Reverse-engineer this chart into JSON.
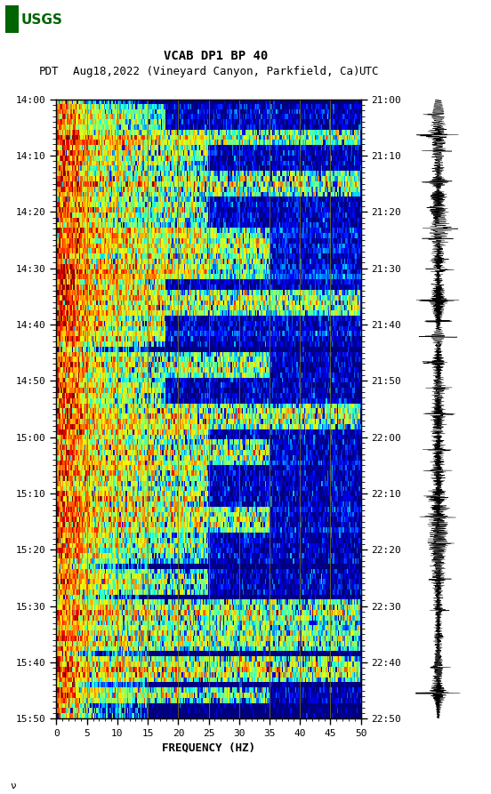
{
  "title_line1": "VCAB DP1 BP 40",
  "title_line2_left": "PDT",
  "title_line2_mid": "Aug18,2022 (Vineyard Canyon, Parkfield, Ca)",
  "title_line2_right": "UTC",
  "xlabel": "FREQUENCY (HZ)",
  "freq_min": 0,
  "freq_max": 50,
  "freq_ticks": [
    0,
    5,
    10,
    15,
    20,
    25,
    30,
    35,
    40,
    45,
    50
  ],
  "left_time_labels": [
    "14:00",
    "14:10",
    "14:20",
    "14:30",
    "14:40",
    "14:50",
    "15:00",
    "15:10",
    "15:20",
    "15:30",
    "15:40",
    "15:50"
  ],
  "right_time_labels": [
    "21:00",
    "21:10",
    "21:20",
    "21:30",
    "21:40",
    "21:50",
    "22:00",
    "22:10",
    "22:20",
    "22:30",
    "22:40",
    "22:50"
  ],
  "num_time_steps": 120,
  "num_freq_bins": 250,
  "background_color": "#ffffff",
  "vertical_line_color": "#808000",
  "vertical_line_positions": [
    5,
    10,
    15,
    20,
    25,
    30,
    35,
    40,
    45
  ],
  "fig_width": 5.52,
  "fig_height": 8.93,
  "usgs_logo_color": "#006400",
  "event_times": [
    3,
    7,
    10,
    16,
    21,
    25,
    27,
    31,
    33,
    36,
    39,
    43,
    46,
    51,
    56,
    61,
    64,
    68,
    72,
    77,
    81,
    86,
    93,
    99,
    104,
    110,
    115
  ],
  "event_widths": [
    2,
    1,
    3,
    2,
    2,
    1,
    2,
    3,
    1,
    2,
    2,
    2,
    1,
    2,
    2,
    2,
    1,
    2,
    2,
    2,
    2,
    3,
    2,
    2,
    2,
    2,
    1
  ]
}
